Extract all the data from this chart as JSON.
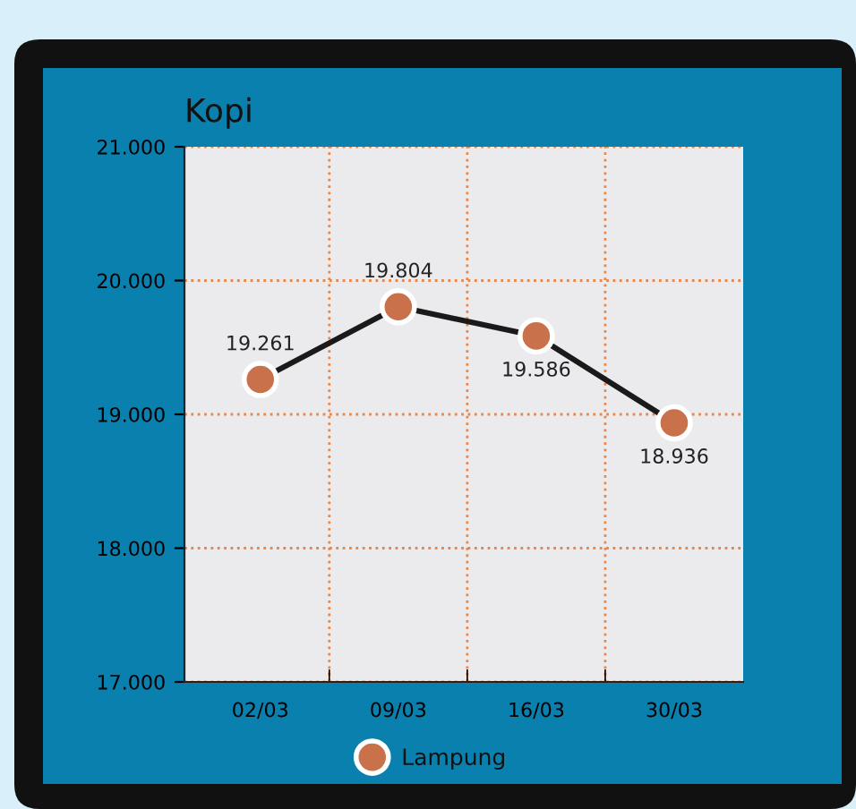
{
  "chart_data": {
    "type": "line",
    "title": "Kopi",
    "categories": [
      "02/03",
      "09/03",
      "16/03",
      "30/03"
    ],
    "series": [
      {
        "name": "Lampung",
        "color": "#c8714a",
        "values": [
          19261,
          19804,
          19586,
          18936
        ],
        "value_labels": [
          "19.261",
          "19.804",
          "19.586",
          "18.936"
        ]
      }
    ],
    "ylim": [
      17000,
      21000
    ],
    "yticks": [
      {
        "value": 17000,
        "label": "17.000"
      },
      {
        "value": 18000,
        "label": "18.000"
      },
      {
        "value": 19000,
        "label": "19.000"
      },
      {
        "value": 20000,
        "label": "20.000"
      },
      {
        "value": 21000,
        "label": "21.000"
      }
    ],
    "grid": true,
    "legend": "bottom",
    "marker": "circle",
    "line_style": "solid"
  }
}
